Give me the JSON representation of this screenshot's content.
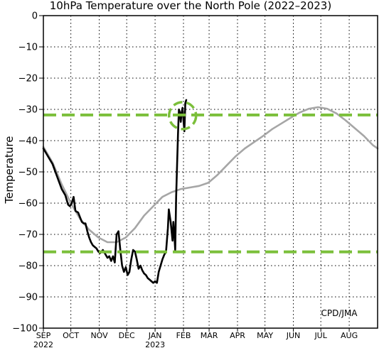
{
  "chart_data": {
    "type": "line",
    "title": "10hPa Temperature over the North Pole (2022–2023)",
    "ylabel": "Temperature",
    "credit": "CPD/JMA",
    "ylim": [
      -100,
      0
    ],
    "yticks": [
      0,
      -10,
      -20,
      -30,
      -40,
      -50,
      -60,
      -70,
      -80,
      -90,
      -100
    ],
    "ytick_labels": [
      "0",
      "−10",
      "−20",
      "−30",
      "−40",
      "−50",
      "−60",
      "−70",
      "−80",
      "−90",
      "−100"
    ],
    "x_range_days": [
      0,
      365
    ],
    "month_ticks": [
      {
        "label": "SEP",
        "day": 0,
        "year": "2022"
      },
      {
        "label": "OCT",
        "day": 30
      },
      {
        "label": "NOV",
        "day": 61
      },
      {
        "label": "DEC",
        "day": 91
      },
      {
        "label": "JAN",
        "day": 122,
        "year": "2023"
      },
      {
        "label": "FEB",
        "day": 153
      },
      {
        "label": "MAR",
        "day": 181
      },
      {
        "label": "APR",
        "day": 212
      },
      {
        "label": "MAY",
        "day": 242
      },
      {
        "label": "JUN",
        "day": 273
      },
      {
        "label": "JUL",
        "day": 303
      },
      {
        "label": "AUG",
        "day": 334
      }
    ],
    "grid": true,
    "colors": {
      "observed": "#000000",
      "climatology": "#a6a6a6",
      "reference_lines": "#7bbf3a",
      "circle": "#7bbf3a"
    },
    "reference_lines": [
      -31.8,
      -75.6
    ],
    "highlight_circle": {
      "day": 152,
      "value": -32
    },
    "series": [
      {
        "key": "climatology",
        "values": [
          [
            0,
            -42
          ],
          [
            10,
            -47
          ],
          [
            20,
            -54
          ],
          [
            30,
            -60
          ],
          [
            40,
            -65
          ],
          [
            50,
            -68.5
          ],
          [
            60,
            -71
          ],
          [
            70,
            -72.5
          ],
          [
            80,
            -72.5
          ],
          [
            90,
            -71
          ],
          [
            100,
            -68
          ],
          [
            110,
            -64
          ],
          [
            120,
            -61
          ],
          [
            130,
            -58
          ],
          [
            140,
            -56.5
          ],
          [
            150,
            -55.5
          ],
          [
            160,
            -55
          ],
          [
            170,
            -54.5
          ],
          [
            180,
            -53.5
          ],
          [
            190,
            -51
          ],
          [
            200,
            -48
          ],
          [
            210,
            -45
          ],
          [
            220,
            -42.5
          ],
          [
            230,
            -40.5
          ],
          [
            240,
            -38.5
          ],
          [
            250,
            -36.3
          ],
          [
            260,
            -34.5
          ],
          [
            270,
            -32.7
          ],
          [
            280,
            -31
          ],
          [
            290,
            -29.8
          ],
          [
            300,
            -29.3
          ],
          [
            310,
            -29.8
          ],
          [
            320,
            -31.3
          ],
          [
            330,
            -33.5
          ],
          [
            340,
            -36
          ],
          [
            350,
            -38.5
          ],
          [
            360,
            -41.5
          ],
          [
            365,
            -42.5
          ]
        ]
      },
      {
        "key": "observed",
        "values": [
          [
            0,
            -42.5
          ],
          [
            5,
            -45
          ],
          [
            10,
            -47.5
          ],
          [
            15,
            -51.5
          ],
          [
            20,
            -55.5
          ],
          [
            24,
            -57.5
          ],
          [
            27,
            -60.5
          ],
          [
            29,
            -61
          ],
          [
            31,
            -60
          ],
          [
            33,
            -58
          ],
          [
            35,
            -62.5
          ],
          [
            38,
            -63
          ],
          [
            40,
            -64.5
          ],
          [
            42,
            -66
          ],
          [
            44,
            -66.5
          ],
          [
            46,
            -66.5
          ],
          [
            48,
            -69
          ],
          [
            50,
            -71
          ],
          [
            52,
            -72.5
          ],
          [
            54,
            -73.5
          ],
          [
            56,
            -74
          ],
          [
            58,
            -74.5
          ],
          [
            60,
            -75.5
          ],
          [
            62,
            -76
          ],
          [
            65,
            -75
          ],
          [
            67,
            -76
          ],
          [
            70,
            -77.5
          ],
          [
            72,
            -77
          ],
          [
            74,
            -78.5
          ],
          [
            76,
            -77
          ],
          [
            78,
            -79
          ],
          [
            80,
            -70
          ],
          [
            82,
            -69
          ],
          [
            84,
            -75
          ],
          [
            86,
            -80
          ],
          [
            88,
            -82
          ],
          [
            90,
            -80.5
          ],
          [
            92,
            -83
          ],
          [
            94,
            -82
          ],
          [
            96,
            -78
          ],
          [
            98,
            -75
          ],
          [
            100,
            -75.5
          ],
          [
            102,
            -78
          ],
          [
            104,
            -81
          ],
          [
            106,
            -80
          ],
          [
            108,
            -81.5
          ],
          [
            110,
            -82.5
          ],
          [
            112,
            -83
          ],
          [
            114,
            -84
          ],
          [
            116,
            -84.5
          ],
          [
            118,
            -85
          ],
          [
            120,
            -85.5
          ],
          [
            122,
            -85
          ],
          [
            124,
            -85.5
          ],
          [
            126,
            -82
          ],
          [
            128,
            -80
          ],
          [
            130,
            -78
          ],
          [
            132,
            -76.5
          ],
          [
            134,
            -75.5
          ],
          [
            136,
            -68
          ],
          [
            137,
            -62
          ],
          [
            139,
            -66
          ],
          [
            141,
            -72
          ],
          [
            142,
            -66
          ],
          [
            143,
            -70
          ],
          [
            144,
            -75
          ],
          [
            145,
            -58
          ],
          [
            146,
            -48
          ],
          [
            147,
            -38
          ],
          [
            148,
            -30
          ],
          [
            149,
            -31
          ],
          [
            150,
            -34
          ],
          [
            151,
            -31
          ],
          [
            152,
            -29.5
          ],
          [
            153,
            -33.5
          ],
          [
            154,
            -37
          ],
          [
            155,
            -28
          ],
          [
            156,
            -27
          ]
        ]
      }
    ]
  }
}
